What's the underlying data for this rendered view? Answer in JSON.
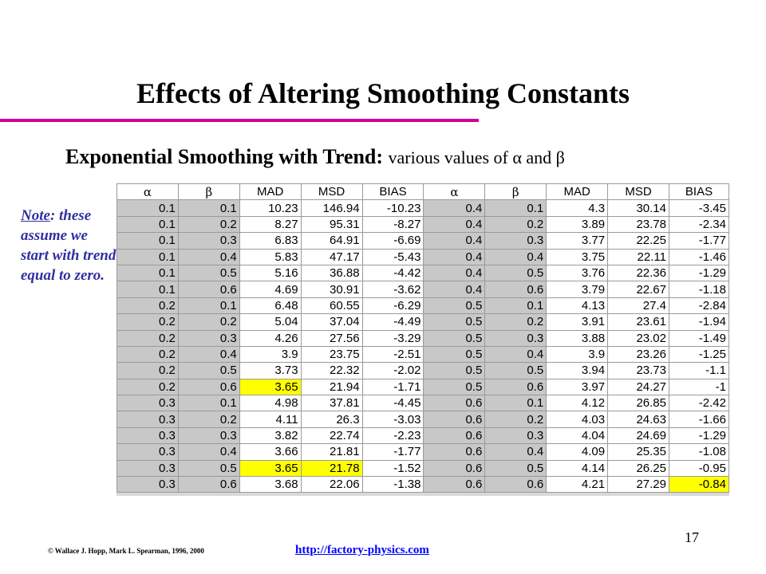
{
  "title": "Effects of Altering Smoothing Constants",
  "subtitle": {
    "bold": "Exponential Smoothing with Trend:",
    "normal": "various values of α and β"
  },
  "note": {
    "label": "Note",
    "text": ": these assume we start with trend equal to zero."
  },
  "table": {
    "headers": [
      "α",
      "β",
      "MAD",
      "MSD",
      "BIAS",
      "α",
      "β",
      "MAD",
      "MSD",
      "BIAS"
    ],
    "rows": [
      [
        "0.1",
        "0.1",
        "10.23",
        "146.94",
        "-10.23",
        "0.4",
        "0.1",
        "4.3",
        "30.14",
        "-3.45"
      ],
      [
        "0.1",
        "0.2",
        "8.27",
        "95.31",
        "-8.27",
        "0.4",
        "0.2",
        "3.89",
        "23.78",
        "-2.34"
      ],
      [
        "0.1",
        "0.3",
        "6.83",
        "64.91",
        "-6.69",
        "0.4",
        "0.3",
        "3.77",
        "22.25",
        "-1.77"
      ],
      [
        "0.1",
        "0.4",
        "5.83",
        "47.17",
        "-5.43",
        "0.4",
        "0.4",
        "3.75",
        "22.11",
        "-1.46"
      ],
      [
        "0.1",
        "0.5",
        "5.16",
        "36.88",
        "-4.42",
        "0.4",
        "0.5",
        "3.76",
        "22.36",
        "-1.29"
      ],
      [
        "0.1",
        "0.6",
        "4.69",
        "30.91",
        "-3.62",
        "0.4",
        "0.6",
        "3.79",
        "22.67",
        "-1.18"
      ],
      [
        "0.2",
        "0.1",
        "6.48",
        "60.55",
        "-6.29",
        "0.5",
        "0.1",
        "4.13",
        "27.4",
        "-2.84"
      ],
      [
        "0.2",
        "0.2",
        "5.04",
        "37.04",
        "-4.49",
        "0.5",
        "0.2",
        "3.91",
        "23.61",
        "-1.94"
      ],
      [
        "0.2",
        "0.3",
        "4.26",
        "27.56",
        "-3.29",
        "0.5",
        "0.3",
        "3.88",
        "23.02",
        "-1.49"
      ],
      [
        "0.2",
        "0.4",
        "3.9",
        "23.75",
        "-2.51",
        "0.5",
        "0.4",
        "3.9",
        "23.26",
        "-1.25"
      ],
      [
        "0.2",
        "0.5",
        "3.73",
        "22.32",
        "-2.02",
        "0.5",
        "0.5",
        "3.94",
        "23.73",
        "-1.1"
      ],
      [
        "0.2",
        "0.6",
        "3.65",
        "21.94",
        "-1.71",
        "0.5",
        "0.6",
        "3.97",
        "24.27",
        "-1"
      ],
      [
        "0.3",
        "0.1",
        "4.98",
        "37.81",
        "-4.45",
        "0.6",
        "0.1",
        "4.12",
        "26.85",
        "-2.42"
      ],
      [
        "0.3",
        "0.2",
        "4.11",
        "26.3",
        "-3.03",
        "0.6",
        "0.2",
        "4.03",
        "24.63",
        "-1.66"
      ],
      [
        "0.3",
        "0.3",
        "3.82",
        "22.74",
        "-2.23",
        "0.6",
        "0.3",
        "4.04",
        "24.69",
        "-1.29"
      ],
      [
        "0.3",
        "0.4",
        "3.66",
        "21.81",
        "-1.77",
        "0.6",
        "0.4",
        "4.09",
        "25.35",
        "-1.08"
      ],
      [
        "0.3",
        "0.5",
        "3.65",
        "21.78",
        "-1.52",
        "0.6",
        "0.5",
        "4.14",
        "26.25",
        "-0.95"
      ],
      [
        "0.3",
        "0.6",
        "3.68",
        "22.06",
        "-1.38",
        "0.6",
        "0.6",
        "4.21",
        "27.29",
        "-0.84"
      ]
    ],
    "highlighted_cells": [
      [
        11,
        2
      ],
      [
        16,
        2
      ],
      [
        16,
        3
      ],
      [
        17,
        9
      ]
    ],
    "highlight_color": "#ffff00"
  },
  "footer": {
    "copyright": "© Wallace J. Hopp, Mark L. Spearman, 1996, 2000",
    "url": "http://factory-physics.com",
    "page_number": "17"
  },
  "colors": {
    "title_rule": "#cc0099",
    "note_text": "#3030a0",
    "link": "#0000ff",
    "gray_cells": "#c8c8c8"
  }
}
